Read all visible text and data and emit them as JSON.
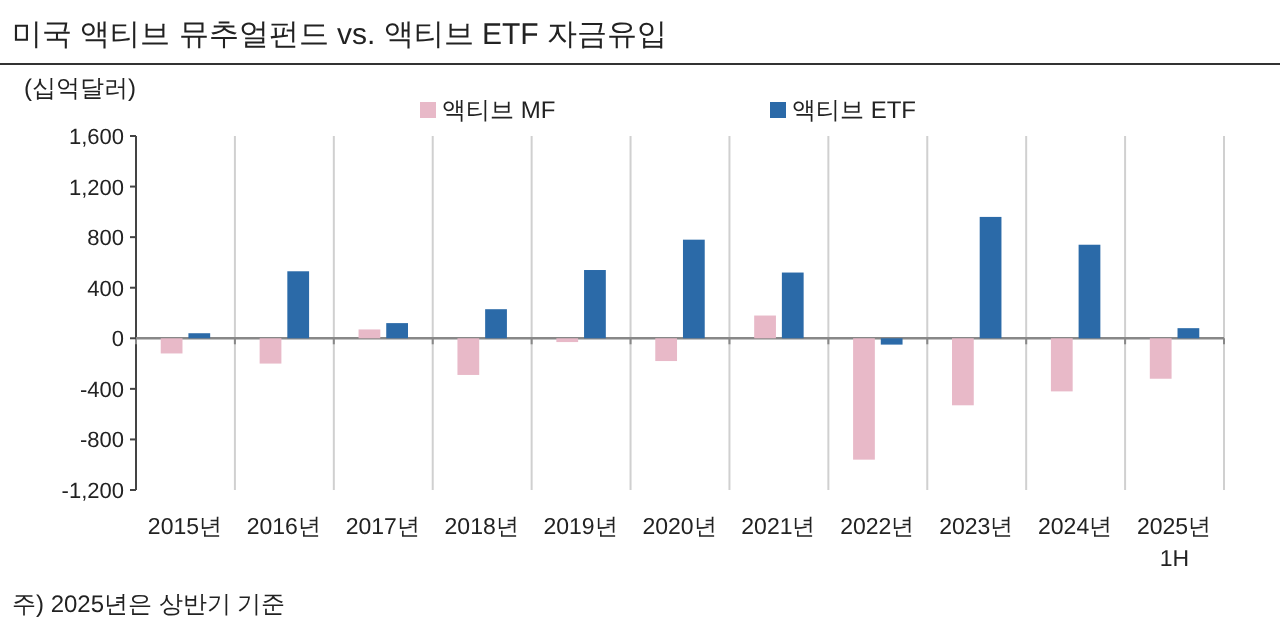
{
  "chart_data": {
    "type": "bar",
    "title": "미국 액티브 뮤추얼펀드 vs. 액티브 ETF 자금유입",
    "ylabel": "(십억달러)",
    "categories": [
      "2015년",
      "2016년",
      "2017년",
      "2018년",
      "2019년",
      "2020년",
      "2021년",
      "2022년",
      "2023년",
      "2024년",
      "2025년\n1H"
    ],
    "series": [
      {
        "name": "액티브 MF",
        "color": "#e8b9c8",
        "values": [
          -120,
          -200,
          70,
          -290,
          -30,
          -180,
          180,
          -960,
          -530,
          -420,
          -320
        ]
      },
      {
        "name": "액티브 ETF",
        "color": "#2b6aa8",
        "values": [
          40,
          530,
          120,
          230,
          540,
          780,
          520,
          -50,
          960,
          740,
          80
        ]
      }
    ],
    "ylim": [
      -1200,
      1600
    ],
    "yticks": [
      {
        "value": -1200,
        "label": "-1,200"
      },
      -800,
      -400,
      0,
      400,
      800,
      {
        "value": 1200,
        "label": "1,200"
      },
      {
        "value": 1600,
        "label": "1,600"
      }
    ],
    "grid": "x",
    "legend": "top",
    "annotations": [
      "주) 2025년은 상반기 기준"
    ]
  }
}
